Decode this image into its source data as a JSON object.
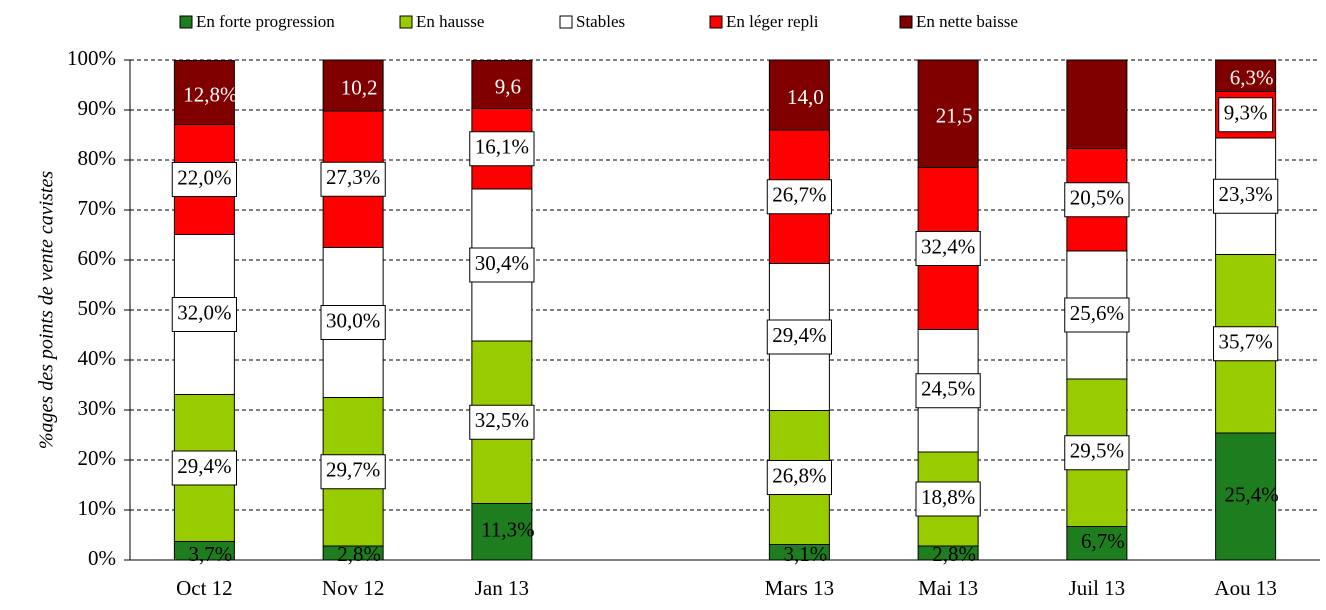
{
  "chart_data": {
    "type": "stacked_bar",
    "y_label": "%ages des points de vente cavistes",
    "categories": [
      "Oct 12",
      "Nov 12",
      "Jan 13",
      null,
      "Mars 13",
      "Mai 13",
      "Juil 13",
      "Aou 13"
    ],
    "series": [
      {
        "name": "En forte progression",
        "color": "#1e7d1e",
        "values": [
          3.7,
          2.8,
          11.3,
          null,
          3.1,
          2.8,
          6.7,
          25.4
        ],
        "value_labels": [
          "3,7%",
          "2,8%",
          "11,3%",
          null,
          "3,1%",
          "2,8%",
          "6,7%",
          "25,4%"
        ]
      },
      {
        "name": "En hausse",
        "color": "#99cc00",
        "values": [
          29.4,
          29.7,
          32.5,
          null,
          26.8,
          18.8,
          29.5,
          35.7
        ],
        "value_labels": [
          "29,4%",
          "29,7%",
          "32,5%",
          null,
          "26,8%",
          "18,8%",
          "29,5%",
          "35,7%"
        ]
      },
      {
        "name": "Stables",
        "color": "#ffffff",
        "values": [
          32.0,
          30.0,
          30.4,
          null,
          29.4,
          24.5,
          25.6,
          23.3
        ],
        "value_labels": [
          "32,0%",
          "30,0%",
          "30,4%",
          null,
          "29,4%",
          "24,5%",
          "25,6%",
          "23,3%"
        ]
      },
      {
        "name": "En léger repli",
        "color": "#ff0000",
        "values": [
          22.0,
          27.3,
          16.1,
          null,
          26.7,
          32.4,
          20.5,
          9.3
        ],
        "value_labels": [
          "22,0%",
          "27,3%",
          "16,1%",
          null,
          "26,7%",
          "32,4%",
          "20,5%",
          "9,3%"
        ]
      },
      {
        "name": "En nette baisse",
        "color": "#800000",
        "values": [
          12.8,
          10.2,
          9.6,
          null,
          14.0,
          21.5,
          17.7,
          6.3
        ],
        "value_labels": [
          "12,8%",
          "10,2",
          "9,6",
          null,
          "14,0",
          "21,5",
          null,
          "6,3%"
        ]
      }
    ],
    "ylim": [
      0,
      100
    ],
    "yticks": [
      {
        "value": 0,
        "label": "0%"
      },
      {
        "value": 10,
        "label": "10%"
      },
      {
        "value": 20,
        "label": "20%"
      },
      {
        "value": 30,
        "label": "30%"
      },
      {
        "value": 40,
        "label": "40%"
      },
      {
        "value": 50,
        "label": "50%"
      },
      {
        "value": 60,
        "label": "60%"
      },
      {
        "value": 70,
        "label": "70%"
      },
      {
        "value": 80,
        "label": "80%"
      },
      {
        "value": 90,
        "label": "90%"
      },
      {
        "value": 100,
        "label": "100%"
      }
    ],
    "grid": true
  }
}
